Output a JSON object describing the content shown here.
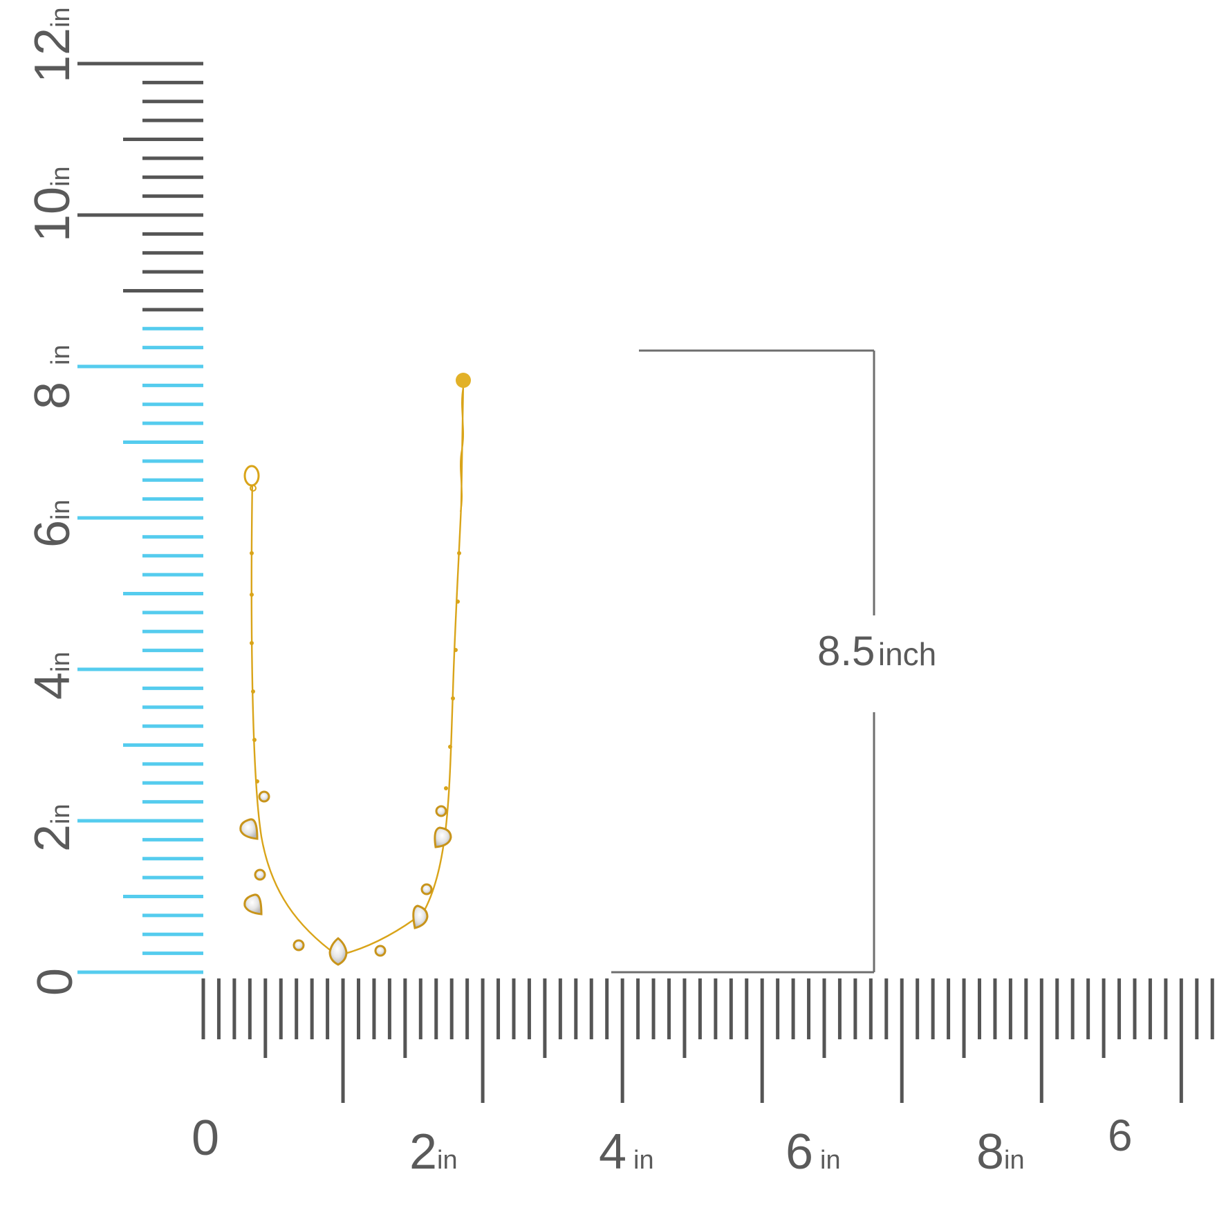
{
  "image": {
    "subject": "gold chain necklace with teardrop and round crystal charms",
    "colors": {
      "chain": "#D9A419",
      "ruler_tick": "#555555",
      "ruler_highlight": "#55CCEE",
      "background": "#FFFFFF",
      "crystal": "#EDEDED"
    }
  },
  "vertical_ruler": {
    "labels": [
      {
        "value": "0",
        "unit": ""
      },
      {
        "value": "2",
        "unit": "in"
      },
      {
        "value": "4",
        "unit": "in"
      },
      {
        "value": "6",
        "unit": "in"
      },
      {
        "value": "8",
        "unit": "in"
      },
      {
        "value": "10",
        "unit": "in"
      },
      {
        "value": "12",
        "unit": "in"
      }
    ],
    "highlighted_range_in": [
      0,
      8.5
    ]
  },
  "horizontal_ruler": {
    "labels": [
      {
        "value": "0",
        "unit": ""
      },
      {
        "value": "2",
        "unit": "in"
      },
      {
        "value": "4",
        "unit": "in"
      },
      {
        "value": "6",
        "unit": "in"
      },
      {
        "value": "8",
        "unit": "in"
      },
      {
        "value": "6",
        "unit": ""
      }
    ]
  },
  "dimension": {
    "value": "8.5",
    "unit": "inch"
  }
}
